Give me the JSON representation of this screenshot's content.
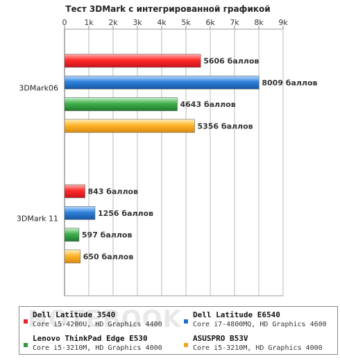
{
  "chart_data": {
    "type": "bar",
    "orientation": "horizontal",
    "title": "Тест 3DMark с интегрированной графикой",
    "x_ticks": [
      "0",
      "1k",
      "2k",
      "3k",
      "4k",
      "5k",
      "6k",
      "7k",
      "8k",
      "9k"
    ],
    "xlim": [
      0,
      9000
    ],
    "grid": true,
    "categories": [
      "3DMark06",
      "3DMark 11"
    ],
    "series": [
      {
        "name": "Dell Latitude 3540",
        "spec": "Core i5-4200U, HD Graphics 4400",
        "color": "#e8202a",
        "values": [
          5606,
          843
        ],
        "labels": [
          "5606 баллов",
          "843 баллов"
        ]
      },
      {
        "name": "Dell Latitude E6540",
        "spec": "Core i7-4800MQ, HD Graphics 4600",
        "color": "#1f6fc2",
        "values": [
          8009,
          1256
        ],
        "labels": [
          "8009 баллов",
          "1256 баллов"
        ]
      },
      {
        "name": "Lenovo ThinkPad Edge E530",
        "spec": "Core i5-3210M, HD Graphics 4000",
        "color": "#2e9a3e",
        "values": [
          4643,
          597
        ],
        "labels": [
          "4643 баллов",
          "597 баллов"
        ]
      },
      {
        "name": "ASUSPRO B53V",
        "spec": "Core i5-3210M, HD Graphics 4000",
        "color": "#f2a51f",
        "values": [
          5356,
          650
        ],
        "labels": [
          "5356 баллов",
          "650 баллов"
        ]
      }
    ],
    "legend_position": "bottom"
  }
}
